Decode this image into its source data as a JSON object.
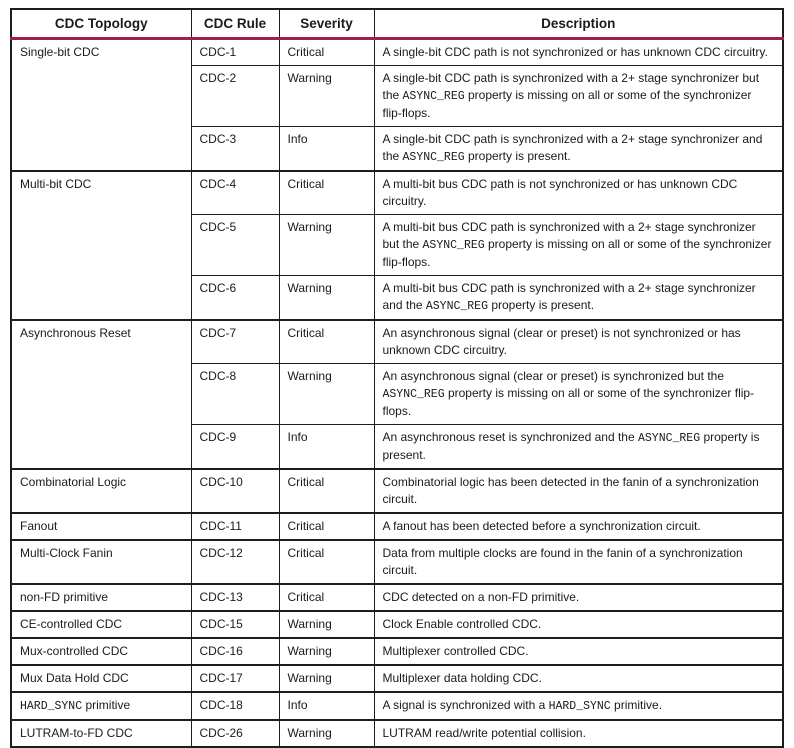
{
  "page": {
    "background": "#ffffff"
  },
  "colors": {
    "table_border": "#1d1d1d",
    "text": "#1a1a1a",
    "header_underline": "#9e2047"
  },
  "table": {
    "columns": [
      "CDC Topology",
      "CDC Rule",
      "Severity",
      "Description"
    ],
    "groups": [
      {
        "topology": [
          [
            "plain",
            "Single-bit CDC"
          ]
        ],
        "rows": [
          {
            "rule": "CDC-1",
            "severity": "Critical",
            "description": [
              [
                "plain",
                "A single-bit CDC path is not synchronized or has unknown CDC circuitry."
              ]
            ]
          },
          {
            "rule": "CDC-2",
            "severity": "Warning",
            "description": [
              [
                "plain",
                "A single-bit CDC path is synchronized with a 2+ stage synchronizer but the "
              ],
              [
                "mono",
                "ASYNC_REG"
              ],
              [
                "plain",
                " property is missing on all or some of the synchronizer flip-flops."
              ]
            ]
          },
          {
            "rule": "CDC-3",
            "severity": "Info",
            "description": [
              [
                "plain",
                "A single-bit CDC path is synchronized with a 2+ stage synchronizer and the "
              ],
              [
                "mono",
                "ASYNC_REG"
              ],
              [
                "plain",
                " property is present."
              ]
            ]
          }
        ]
      },
      {
        "topology": [
          [
            "plain",
            "Multi-bit CDC"
          ]
        ],
        "rows": [
          {
            "rule": "CDC-4",
            "severity": "Critical",
            "description": [
              [
                "plain",
                "A multi-bit bus CDC path is not synchronized or has unknown CDC circuitry."
              ]
            ]
          },
          {
            "rule": "CDC-5",
            "severity": "Warning",
            "description": [
              [
                "plain",
                "A multi-bit bus CDC path is synchronized with a 2+ stage synchronizer but the "
              ],
              [
                "mono",
                "ASYNC_REG"
              ],
              [
                "plain",
                " property is missing on all or some of the synchronizer flip-flops."
              ]
            ]
          },
          {
            "rule": "CDC-6",
            "severity": "Warning",
            "description": [
              [
                "plain",
                "A multi-bit bus CDC path is synchronized with a 2+ stage synchronizer and the "
              ],
              [
                "mono",
                "ASYNC_REG"
              ],
              [
                "plain",
                " property is present."
              ]
            ]
          }
        ]
      },
      {
        "topology": [
          [
            "plain",
            "Asynchronous Reset"
          ]
        ],
        "rows": [
          {
            "rule": "CDC-7",
            "severity": "Critical",
            "description": [
              [
                "plain",
                "An asynchronous signal (clear or preset) is not synchronized or has unknown CDC circuitry."
              ]
            ]
          },
          {
            "rule": "CDC-8",
            "severity": "Warning",
            "description": [
              [
                "plain",
                "An asynchronous signal (clear or preset) is synchronized but the "
              ],
              [
                "mono",
                "ASYNC_REG"
              ],
              [
                "plain",
                " property is missing on all or some of the synchronizer flip-flops."
              ]
            ]
          },
          {
            "rule": "CDC-9",
            "severity": "Info",
            "description": [
              [
                "plain",
                "An asynchronous reset is synchronized and the "
              ],
              [
                "mono",
                "ASYNC_REG"
              ],
              [
                "plain",
                " property is present."
              ]
            ]
          }
        ]
      },
      {
        "topology": [
          [
            "plain",
            "Combinatorial Logic"
          ]
        ],
        "rows": [
          {
            "rule": "CDC-10",
            "severity": "Critical",
            "description": [
              [
                "plain",
                "Combinatorial logic has been detected in the fanin of a synchronization circuit."
              ]
            ]
          }
        ]
      },
      {
        "topology": [
          [
            "plain",
            "Fanout"
          ]
        ],
        "rows": [
          {
            "rule": "CDC-11",
            "severity": "Critical",
            "description": [
              [
                "plain",
                "A fanout has been detected before a synchronization circuit."
              ]
            ]
          }
        ]
      },
      {
        "topology": [
          [
            "plain",
            "Multi-Clock Fanin"
          ]
        ],
        "rows": [
          {
            "rule": "CDC-12",
            "severity": "Critical",
            "description": [
              [
                "plain",
                "Data from multiple clocks are found in the fanin of a synchronization circuit."
              ]
            ]
          }
        ]
      },
      {
        "topology": [
          [
            "plain",
            "non-FD primitive"
          ]
        ],
        "rows": [
          {
            "rule": "CDC-13",
            "severity": "Critical",
            "description": [
              [
                "plain",
                "CDC detected on a non-FD primitive."
              ]
            ]
          }
        ]
      },
      {
        "topology": [
          [
            "plain",
            "CE-controlled CDC"
          ]
        ],
        "rows": [
          {
            "rule": "CDC-15",
            "severity": "Warning",
            "description": [
              [
                "plain",
                "Clock Enable controlled CDC."
              ]
            ]
          }
        ]
      },
      {
        "topology": [
          [
            "plain",
            "Mux-controlled CDC"
          ]
        ],
        "rows": [
          {
            "rule": "CDC-16",
            "severity": "Warning",
            "description": [
              [
                "plain",
                "Multiplexer controlled CDC."
              ]
            ]
          }
        ]
      },
      {
        "topology": [
          [
            "plain",
            "Mux Data Hold CDC"
          ]
        ],
        "rows": [
          {
            "rule": "CDC-17",
            "severity": "Warning",
            "description": [
              [
                "plain",
                "Multiplexer data holding CDC."
              ]
            ]
          }
        ]
      },
      {
        "topology": [
          [
            "mono",
            "HARD_SYNC"
          ],
          [
            "plain",
            " primitive"
          ]
        ],
        "rows": [
          {
            "rule": "CDC-18",
            "severity": "Info",
            "description": [
              [
                "plain",
                "A signal is synchronized with a "
              ],
              [
                "mono",
                "HARD_SYNC"
              ],
              [
                "plain",
                " primitive."
              ]
            ]
          }
        ]
      },
      {
        "topology": [
          [
            "plain",
            "LUTRAM-to-FD CDC"
          ]
        ],
        "rows": [
          {
            "rule": "CDC-26",
            "severity": "Warning",
            "description": [
              [
                "plain",
                "LUTRAM read/write potential collision."
              ]
            ]
          }
        ]
      }
    ]
  }
}
